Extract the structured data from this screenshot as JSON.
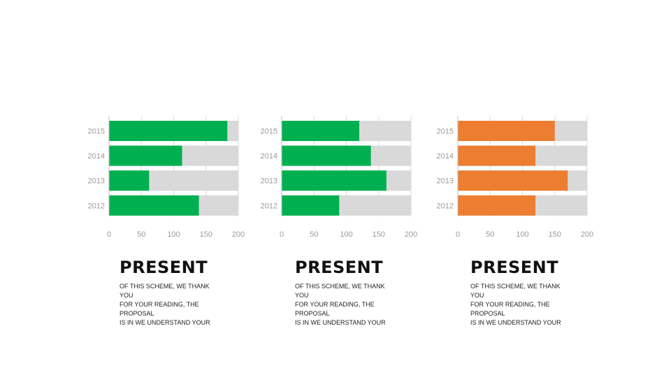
{
  "chart_data": [
    {
      "type": "bar",
      "orientation": "horizontal",
      "categories": [
        "2015",
        "2014",
        "2013",
        "2012"
      ],
      "series": [
        {
          "values": [
            183,
            113,
            62,
            139
          ],
          "color": "#00b050"
        }
      ],
      "background_max": 200,
      "background_color": "#d9d9d9",
      "xlim": [
        0,
        200
      ],
      "xticks": [
        "0",
        "50",
        "100",
        "150",
        "200"
      ],
      "grid": false
    },
    {
      "type": "bar",
      "orientation": "horizontal",
      "categories": [
        "2015",
        "2014",
        "2013",
        "2012"
      ],
      "series": [
        {
          "values": [
            120,
            138,
            162,
            89
          ],
          "color": "#00b050"
        }
      ],
      "background_max": 200,
      "background_color": "#d9d9d9",
      "xlim": [
        0,
        200
      ],
      "xticks": [
        "0",
        "50",
        "100",
        "150",
        "200"
      ],
      "grid": false
    },
    {
      "type": "bar",
      "orientation": "horizontal",
      "categories": [
        "2015",
        "2014",
        "2013",
        "2012"
      ],
      "series": [
        {
          "values": [
            150,
            120,
            170,
            120
          ],
          "color": "#ed7d31"
        }
      ],
      "background_max": 200,
      "background_color": "#d9d9d9",
      "xlim": [
        0,
        200
      ],
      "xticks": [
        "0",
        "50",
        "100",
        "150",
        "200"
      ],
      "grid": false
    }
  ],
  "blocks": [
    {
      "title": "PRESENT",
      "body": "OF THIS SCHEME, WE THANK YOU\nFOR YOUR READING, THE PROPOSAL\nIS IN WE UNDERSTAND YOUR"
    },
    {
      "title": "PRESENT",
      "body": "OF THIS SCHEME, WE THANK YOU\nFOR YOUR READING, THE PROPOSAL\nIS IN WE UNDERSTAND YOUR"
    },
    {
      "title": "PRESENT",
      "body": "OF THIS SCHEME, WE THANK YOU\nFOR YOUR READING, THE PROPOSAL\nIS IN WE UNDERSTAND YOUR"
    }
  ]
}
